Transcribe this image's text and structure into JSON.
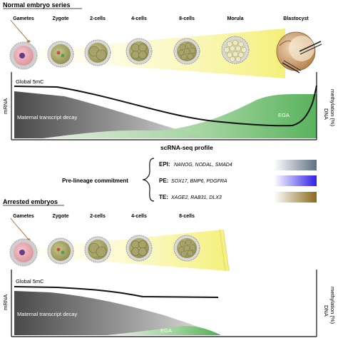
{
  "normal": {
    "heading": "Normal embryo series",
    "stages": [
      "Gametes",
      "Zygote",
      "2-cells",
      "4-cells",
      "8-cells",
      "Morula",
      "Blastocyst"
    ],
    "axis_left": "mRNA",
    "axis_right_1": "DNA",
    "axis_right_2": "methylation (%)",
    "global_label": "Global 5mC",
    "decay_label": "Maternal transcript decay",
    "ega_label": "EGA"
  },
  "profile": {
    "title": "scRNA-seq profile",
    "commitment_label": "Pre-lineage commitment",
    "lineages": [
      {
        "name": "EPI:",
        "genes": "NANOG, NODAL, SMAD4",
        "color": "#5f6f84"
      },
      {
        "name": "PE:",
        "genes": "SOX17, BMP6, PDGFRA",
        "color": "#2f1fe8"
      },
      {
        "name": "TE:",
        "genes": "XAGE2, RAB31, DLX3",
        "color": "#8a6a1c"
      }
    ]
  },
  "arrested": {
    "heading": "Arrested embryos",
    "stages": [
      "Gametes",
      "Zygote",
      "2-cells",
      "4-cells",
      "8-cells"
    ],
    "axis_left": "mRNA",
    "axis_right_1": "DNA",
    "axis_right_2": "methylation (%)",
    "global_label": "Global 5mC",
    "decay_label": "Maternal transcript decay",
    "ega_label": "EGA"
  }
}
